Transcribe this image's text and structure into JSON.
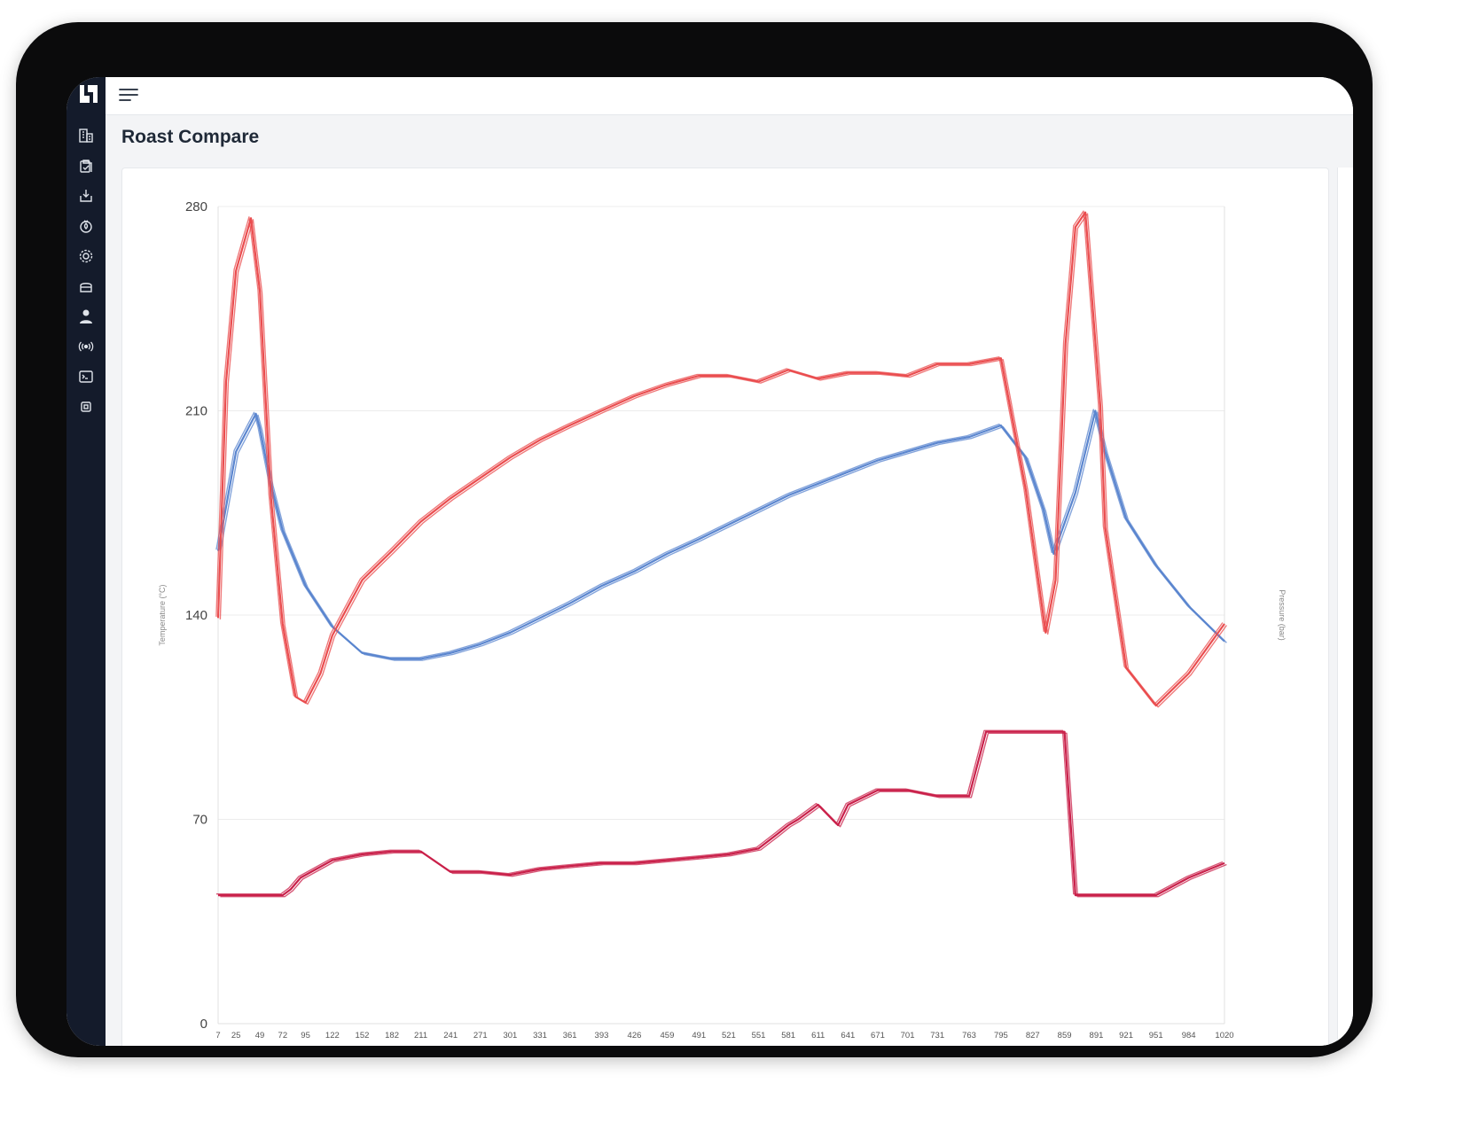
{
  "app": {
    "page_title": "Roast Compare"
  },
  "sidebar": {
    "items": [
      {
        "icon": "building-icon"
      },
      {
        "icon": "clipboard-check-icon"
      },
      {
        "icon": "download-box-icon"
      },
      {
        "icon": "fire-icon"
      },
      {
        "icon": "gear-icon"
      },
      {
        "icon": "drum-icon"
      },
      {
        "icon": "user-icon"
      },
      {
        "icon": "broadcast-icon"
      },
      {
        "icon": "terminal-icon"
      },
      {
        "icon": "chip-icon"
      }
    ]
  },
  "colors": {
    "bean_temp": "#5b86cf",
    "env_temp": "#ea4d4f",
    "pressure": "#c9204a"
  },
  "chart_data": {
    "type": "line",
    "ylabel": "Temperature (°C)",
    "y2label": "Pressure (bar)",
    "ylim": [
      0,
      280
    ],
    "yticks": [
      0,
      70,
      140,
      210,
      280
    ],
    "grid": true,
    "legend": "none",
    "xlim": [
      7,
      1020
    ],
    "xticks": [
      7,
      25,
      49,
      72,
      95,
      122,
      152,
      182,
      211,
      241,
      271,
      301,
      331,
      361,
      393,
      426,
      459,
      491,
      521,
      551,
      581,
      611,
      641,
      671,
      701,
      731,
      763,
      795,
      827,
      859,
      891,
      921,
      951,
      984,
      1020
    ],
    "series": [
      {
        "color": "#5b86cf",
        "x": [
          7,
          25,
          45,
          49,
          60,
          72,
          95,
          122,
          152,
          182,
          211,
          241,
          271,
          301,
          331,
          361,
          393,
          426,
          459,
          491,
          521,
          551,
          581,
          611,
          641,
          671,
          701,
          731,
          763,
          795,
          820,
          838,
          848,
          870,
          890,
          900,
          921,
          951,
          984,
          1020
        ],
        "values": [
          162,
          196,
          209,
          204,
          185,
          169,
          150,
          136,
          127,
          125,
          125,
          127,
          130,
          134,
          139,
          144,
          150,
          155,
          161,
          166,
          171,
          176,
          181,
          185,
          189,
          193,
          196,
          199,
          201,
          205,
          194,
          176,
          161,
          182,
          210,
          196,
          173,
          157,
          143,
          131
        ]
      },
      {
        "color": "#ea4d4f",
        "x": [
          7,
          15,
          25,
          40,
          49,
          60,
          72,
          85,
          95,
          110,
          122,
          152,
          182,
          211,
          241,
          271,
          301,
          331,
          361,
          393,
          426,
          459,
          491,
          521,
          551,
          581,
          611,
          641,
          671,
          701,
          731,
          763,
          795,
          820,
          840,
          850,
          860,
          870,
          880,
          895,
          900,
          921,
          951,
          984,
          1020
        ],
        "values": [
          139,
          220,
          258,
          276,
          251,
          181,
          137,
          112,
          110,
          120,
          133,
          152,
          162,
          172,
          180,
          187,
          194,
          200,
          205,
          210,
          215,
          219,
          222,
          222,
          220,
          224,
          221,
          223,
          223,
          222,
          226,
          226,
          228,
          183,
          134,
          152,
          233,
          273,
          278,
          212,
          170,
          122,
          109,
          120,
          137
        ]
      },
      {
        "color": "#c9204a",
        "x": [
          7,
          72,
          80,
          90,
          122,
          152,
          182,
          211,
          241,
          271,
          301,
          331,
          361,
          393,
          426,
          459,
          491,
          521,
          551,
          570,
          581,
          591,
          611,
          631,
          641,
          671,
          701,
          731,
          763,
          780,
          800,
          827,
          859,
          870,
          891,
          921,
          941,
          951,
          984,
          1020
        ],
        "values": [
          44,
          44,
          46,
          50,
          56,
          58,
          59,
          59,
          52,
          52,
          51,
          53,
          54,
          55,
          55,
          56,
          57,
          58,
          60,
          65,
          68,
          70,
          75,
          68,
          75,
          80,
          80,
          78,
          78,
          100,
          100,
          100,
          100,
          44,
          44,
          44,
          44,
          44,
          50,
          55
        ]
      }
    ]
  }
}
